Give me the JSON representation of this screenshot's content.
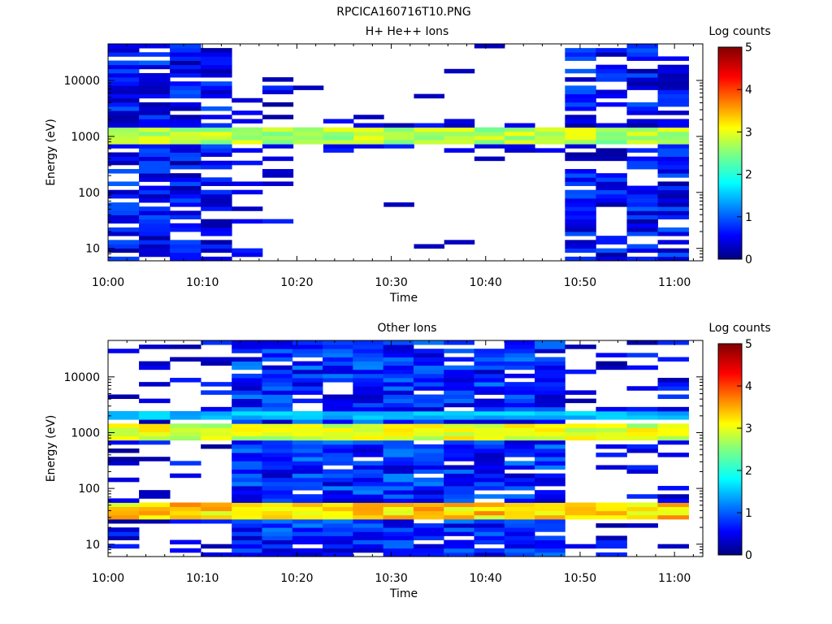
{
  "figure_title": "RPCICA160716T10.PNG",
  "chart_data": [
    {
      "type": "heatmap",
      "title": "H+ He++ Ions",
      "xlabel": "Time",
      "ylabel": "Energy (eV)",
      "x_ticks": [
        "10:00",
        "10:10",
        "10:20",
        "10:30",
        "10:40",
        "10:50",
        "11:00"
      ],
      "xlim_minutes": [
        0,
        63
      ],
      "y_scale": "log",
      "ylim": [
        6,
        45000
      ],
      "y_ticks": [
        {
          "label": "10",
          "value": 10
        },
        {
          "label": "100",
          "value": 100
        },
        {
          "label": "1000",
          "value": 1000
        },
        {
          "label": "10000",
          "value": 10000
        }
      ],
      "colorbar": {
        "label": "Log counts",
        "min": 0,
        "max": 5,
        "ticks": [
          "0",
          "1",
          "2",
          "3",
          "4",
          "5"
        ]
      },
      "segments": [
        {
          "t0": 0.0,
          "t1": 13.1,
          "profile": "dense_wide"
        },
        {
          "t0": 13.1,
          "t1": 19.6,
          "profile": "sparse_wide"
        },
        {
          "t0": 19.6,
          "t1": 48.4,
          "profile": "narrow_band"
        },
        {
          "t0": 48.4,
          "t1": 61.5,
          "profile": "dense_wide"
        }
      ],
      "bands": [
        {
          "e_lo": 700,
          "e_hi": 1500,
          "level": 2.8
        }
      ]
    },
    {
      "type": "heatmap",
      "title": "Other Ions",
      "xlabel": "Time",
      "ylabel": "Energy (eV)",
      "x_ticks": [
        "10:00",
        "10:10",
        "10:20",
        "10:30",
        "10:40",
        "10:50",
        "11:00"
      ],
      "xlim_minutes": [
        0,
        63
      ],
      "y_scale": "log",
      "ylim": [
        6,
        45000
      ],
      "y_ticks": [
        {
          "label": "10",
          "value": 10
        },
        {
          "label": "100",
          "value": 100
        },
        {
          "label": "1000",
          "value": 1000
        },
        {
          "label": "10000",
          "value": 10000
        }
      ],
      "colorbar": {
        "label": "Log counts",
        "min": 0,
        "max": 5,
        "ticks": [
          "0",
          "1",
          "2",
          "3",
          "4",
          "5"
        ]
      },
      "segments": [
        {
          "t0": 0.0,
          "t1": 13.1,
          "profile": "sparse_wide"
        },
        {
          "t0": 13.1,
          "t1": 48.4,
          "profile": "full"
        },
        {
          "t0": 48.4,
          "t1": 61.5,
          "profile": "sparse_wide"
        }
      ],
      "bands": [
        {
          "e_lo": 700,
          "e_hi": 1500,
          "level": 3.0
        },
        {
          "e_lo": 1800,
          "e_hi": 2600,
          "level": 1.6
        },
        {
          "e_lo": 30,
          "e_hi": 52,
          "level": 3.4
        }
      ]
    }
  ]
}
